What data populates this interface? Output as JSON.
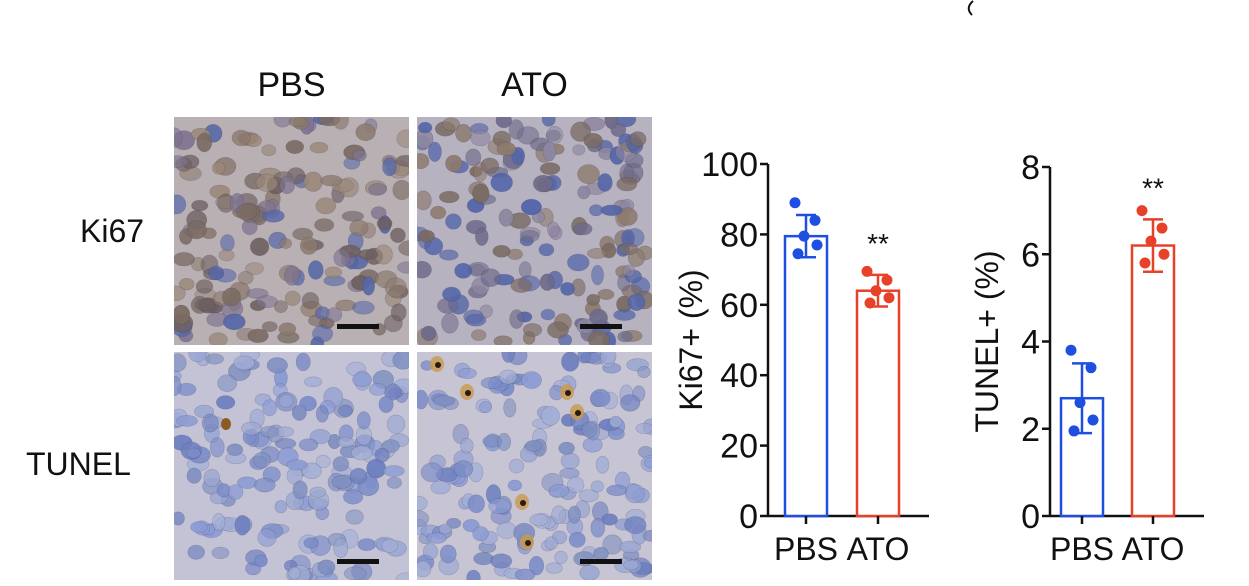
{
  "panels": {
    "columns": [
      "PBS",
      "ATO"
    ],
    "rows": [
      "Ki67",
      "TUNEL"
    ]
  },
  "chart_data": [
    {
      "type": "bar",
      "categories": [
        "PBS",
        "ATO"
      ],
      "values": [
        79.5,
        64
      ],
      "errors": [
        6,
        4.5
      ],
      "points": [
        [
          89,
          84,
          79.5,
          77,
          74.5
        ],
        [
          69.5,
          67,
          64,
          62,
          60.5
        ]
      ],
      "colors": [
        "#1f4fe0",
        "#e8412a"
      ],
      "ylabel": "Ki67+ (%)",
      "ylim": [
        0,
        100
      ],
      "yticks": [
        0,
        20,
        40,
        60,
        80,
        100
      ],
      "annotations": [
        {
          "category": "ATO",
          "text": "**"
        }
      ]
    },
    {
      "type": "bar",
      "categories": [
        "PBS",
        "ATO"
      ],
      "values": [
        2.7,
        6.2
      ],
      "errors": [
        0.8,
        0.6
      ],
      "points": [
        [
          3.8,
          3.4,
          2.6,
          2.2,
          1.95
        ],
        [
          7.0,
          6.6,
          6.3,
          6.0,
          5.8
        ]
      ],
      "colors": [
        "#1f4fe0",
        "#e8412a"
      ],
      "ylabel": "TUNEL+ (%)",
      "ylim": [
        0,
        8
      ],
      "yticks": [
        0,
        2,
        4,
        6,
        8
      ],
      "annotations": [
        {
          "category": "ATO",
          "text": "**"
        }
      ]
    }
  ]
}
